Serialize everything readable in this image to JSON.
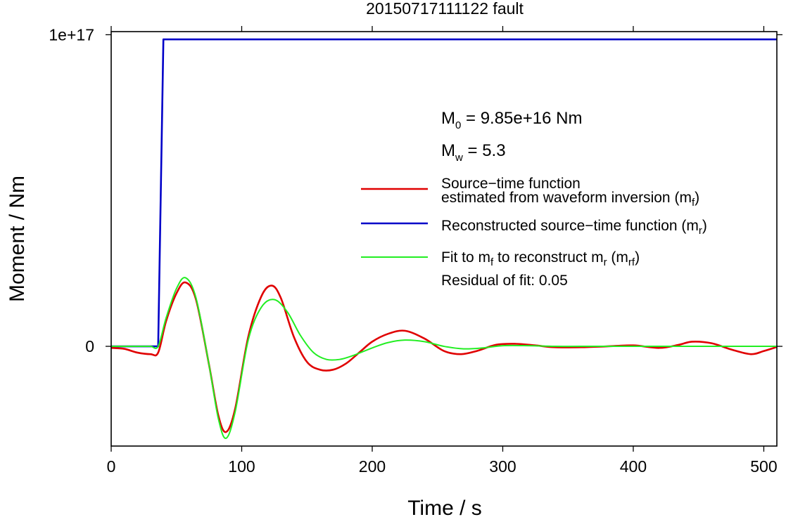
{
  "chart_data": {
    "type": "line",
    "title": "20150717111122 fault",
    "xlabel": "Time / s",
    "ylabel": "Moment / Nm",
    "xlim": [
      0,
      510
    ],
    "ylim": [
      -3.2e+16,
      1.01e+17
    ],
    "x_ticks": [
      0,
      100,
      200,
      300,
      400,
      500
    ],
    "x_tick_labels": [
      "0",
      "100",
      "200",
      "300",
      "400",
      "500"
    ],
    "y_ticks": [
      0,
      1e+17
    ],
    "y_tick_labels": [
      "0",
      "1e+17"
    ],
    "grid": false,
    "legend_position": "center-right",
    "annotations": {
      "m0_prefix": "M",
      "m0_sub": "0",
      "m0_value": " = 9.85e+16 Nm",
      "mw_prefix": "M",
      "mw_sub": "w",
      "mw_value": " = 5.3",
      "residual": "Residual of fit: 0.05"
    },
    "legend": [
      {
        "key": "mf",
        "color": "#e00000",
        "line1": "Source−time function",
        "line2": "estimated from waveform inversion (m",
        "sub": "f",
        "close": ")"
      },
      {
        "key": "mr",
        "color": "#0000c8",
        "line1": "Reconstructed source−time function (m",
        "sub": "r",
        "close": ")"
      },
      {
        "key": "mrf",
        "color": "#22ee22",
        "part1": "Fit to m",
        "sub1": "f",
        "part2": " to reconstruct m",
        "sub2": "r",
        "part3": " (m",
        "sub3": "rf",
        "close": ")"
      }
    ],
    "series": [
      {
        "name": "Source−time function estimated from waveform inversion (mf)",
        "color": "#e00000",
        "x": [
          0,
          10,
          20,
          30,
          36,
          42,
          50,
          57,
          65,
          75,
          82,
          88,
          95,
          105,
          115,
          123,
          130,
          140,
          150,
          160,
          170,
          180,
          190,
          200,
          212,
          225,
          240,
          255,
          268,
          280,
          295,
          310,
          325,
          340,
          360,
          380,
          400,
          420,
          435,
          445,
          460,
          475,
          490,
          500,
          510
        ],
        "y": [
          -500000000000000.0,
          -800000000000000.0,
          -2000000000000000.0,
          -2500000000000000.0,
          -2000000000000000.0,
          8000000000000000.0,
          1.7e+16,
          2.05e+16,
          1.5e+16,
          -6000000000000000.0,
          -2.2e+16,
          -2.75e+16,
          -2e+16,
          3000000000000000.0,
          1.6e+16,
          1.95e+16,
          1.55e+16,
          3000000000000000.0,
          -5000000000000000.0,
          -7500000000000000.0,
          -7500000000000000.0,
          -5500000000000000.0,
          -2000000000000000.0,
          1500000000000000.0,
          4000000000000000.0,
          5000000000000000.0,
          2500000000000000.0,
          -1500000000000000.0,
          -2500000000000000.0,
          -1500000000000000.0,
          500000000000000.0,
          800000000000000.0,
          300000000000000.0,
          -300000000000000.0,
          -300000000000000.0,
          0.0,
          300000000000000.0,
          -500000000000000.0,
          500000000000000.0,
          1500000000000000.0,
          1000000000000000.0,
          -1000000000000000.0,
          -2500000000000000.0,
          -1500000000000000.0,
          -200000000000000.0
        ]
      },
      {
        "name": "Reconstructed source−time function (mr)",
        "color": "#0000c8",
        "x": [
          0,
          36,
          40,
          510
        ],
        "y": [
          0,
          0,
          9.85e+16,
          9.85e+16
        ]
      },
      {
        "name": "Fit to mf to reconstruct mr (mrf)",
        "color": "#22ee22",
        "x": [
          0,
          20,
          30,
          36,
          42,
          50,
          57,
          65,
          75,
          82,
          88,
          95,
          105,
          115,
          125,
          135,
          145,
          155,
          165,
          175,
          185,
          200,
          212,
          225,
          240,
          255,
          270,
          285,
          300,
          320,
          340,
          360,
          400,
          450,
          510
        ],
        "y": [
          0,
          0,
          0,
          0,
          9000000000000000.0,
          1.85e+16,
          2.2e+16,
          1.55e+16,
          -6000000000000000.0,
          -2.3e+16,
          -2.95e+16,
          -2.1e+16,
          2000000000000000.0,
          1.25e+16,
          1.5e+16,
          1.1e+16,
          3500000000000000.0,
          -2000000000000000.0,
          -4200000000000000.0,
          -4200000000000000.0,
          -3000000000000000.0,
          -500000000000000.0,
          1200000000000000.0,
          2000000000000000.0,
          1500000000000000.0,
          0.0,
          -800000000000000.0,
          -500000000000000.0,
          200000000000000.0,
          200000000000000.0,
          0.0,
          0.0,
          0.0,
          0.0,
          0.0
        ]
      }
    ]
  }
}
